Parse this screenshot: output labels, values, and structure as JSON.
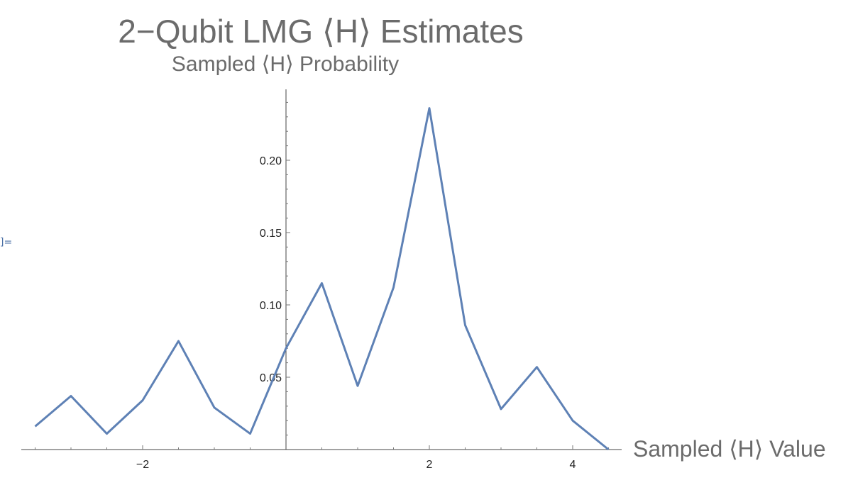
{
  "cell": {
    "output_label": "]="
  },
  "chart_data": {
    "type": "line",
    "title": "2−Qubit LMG ⟨H⟩ Estimates",
    "subtitle": "Sampled ⟨H⟩ Probability",
    "xlabel": "Sampled ⟨H⟩ Value",
    "ylabel": "",
    "xlim": [
      -4.5,
      4.5
    ],
    "ylim": [
      0,
      0.245
    ],
    "x_ticks": [
      -2,
      2,
      4
    ],
    "x_tick_labels": [
      "−2",
      "2",
      "4"
    ],
    "y_ticks": [
      0.05,
      0.1,
      0.15,
      0.2
    ],
    "y_tick_labels": [
      "0.05",
      "0.10",
      "0.15",
      "0.20"
    ],
    "grid": false,
    "line_color": "#5e81b5",
    "series": [
      {
        "x": [
          -3.5,
          -3.0,
          -2.5,
          -2.0,
          -1.5,
          -1.0,
          -0.5,
          0.0,
          0.5,
          1.0,
          1.5,
          2.0,
          2.5,
          3.0,
          3.5,
          4.0,
          4.5
        ],
        "y": [
          0.016,
          0.037,
          0.011,
          0.034,
          0.075,
          0.029,
          0.011,
          0.07,
          0.115,
          0.044,
          0.112,
          0.236,
          0.086,
          0.028,
          0.057,
          0.02,
          0.0
        ]
      }
    ]
  }
}
